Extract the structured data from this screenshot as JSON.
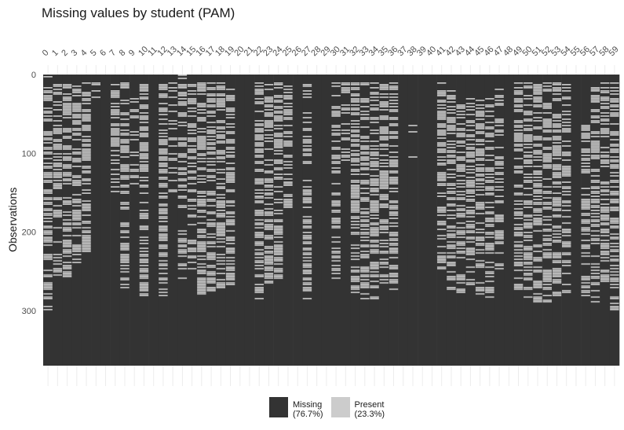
{
  "chart_data": {
    "type": "heatmap",
    "title": "Missing values by student (PAM)",
    "xlabel": "",
    "ylabel": "Observations",
    "x_ticks": [
      "0",
      "1",
      "2",
      "3",
      "4",
      "5",
      "6",
      "7",
      "8",
      "9",
      "10",
      "11",
      "12",
      "13",
      "14",
      "15",
      "16",
      "17",
      "18",
      "19",
      "20",
      "21",
      "22",
      "23",
      "24",
      "25",
      "26",
      "27",
      "28",
      "29",
      "30",
      "31",
      "32",
      "33",
      "34",
      "35",
      "36",
      "37",
      "38",
      "39",
      "40",
      "41",
      "42",
      "43",
      "44",
      "45",
      "46",
      "47",
      "48",
      "49",
      "50",
      "51",
      "52",
      "53",
      "54",
      "55",
      "56",
      "57",
      "58",
      "59"
    ],
    "y_ticks": [
      0,
      100,
      200,
      300
    ],
    "n_observations": 370,
    "legend": [
      {
        "label": "Missing",
        "pct": "(76.7%)",
        "color": "#333333"
      },
      {
        "label": "Present",
        "pct": "(23.3%)",
        "color": "#cccccc"
      }
    ],
    "present_extent_by_student": [
      [
        0,
        300,
        0.5
      ],
      [
        10,
        255,
        0.45
      ],
      [
        12,
        260,
        0.55
      ],
      [
        10,
        240,
        0.5
      ],
      [
        10,
        225,
        0.5
      ],
      [
        10,
        30,
        0.4
      ],
      [
        0,
        0,
        0
      ],
      [
        10,
        150,
        0.5
      ],
      [
        10,
        275,
        0.45
      ],
      [
        20,
        140,
        0.4
      ],
      [
        10,
        285,
        0.55
      ],
      [
        0,
        0,
        0
      ],
      [
        10,
        285,
        0.5
      ],
      [
        10,
        150,
        0.3
      ],
      [
        0,
        265,
        0.5
      ],
      [
        10,
        250,
        0.45
      ],
      [
        10,
        280,
        0.55
      ],
      [
        10,
        275,
        0.5
      ],
      [
        10,
        280,
        0.55
      ],
      [
        10,
        270,
        0.5
      ],
      [
        0,
        0,
        0
      ],
      [
        0,
        0,
        0
      ],
      [
        10,
        285,
        0.5
      ],
      [
        10,
        265,
        0.5
      ],
      [
        10,
        260,
        0.5
      ],
      [
        10,
        170,
        0.5
      ],
      [
        0,
        0,
        0
      ],
      [
        10,
        285,
        0.4
      ],
      [
        0,
        0,
        0
      ],
      [
        0,
        0,
        0
      ],
      [
        10,
        260,
        0.45
      ],
      [
        10,
        110,
        0.45
      ],
      [
        10,
        280,
        0.5
      ],
      [
        10,
        290,
        0.5
      ],
      [
        10,
        285,
        0.5
      ],
      [
        10,
        270,
        0.5
      ],
      [
        10,
        275,
        0.5
      ],
      [
        0,
        0,
        0
      ],
      [
        0,
        130,
        0.06
      ],
      [
        0,
        0,
        0
      ],
      [
        0,
        0,
        0
      ],
      [
        10,
        250,
        0.45
      ],
      [
        20,
        275,
        0.5
      ],
      [
        30,
        285,
        0.5
      ],
      [
        30,
        270,
        0.5
      ],
      [
        30,
        280,
        0.5
      ],
      [
        30,
        285,
        0.45
      ],
      [
        10,
        250,
        0.45
      ],
      [
        0,
        0,
        0
      ],
      [
        10,
        275,
        0.45
      ],
      [
        10,
        285,
        0.5
      ],
      [
        10,
        290,
        0.5
      ],
      [
        10,
        290,
        0.5
      ],
      [
        10,
        285,
        0.5
      ],
      [
        10,
        280,
        0.45
      ],
      [
        0,
        0,
        0
      ],
      [
        60,
        290,
        0.5
      ],
      [
        10,
        290,
        0.5
      ],
      [
        10,
        280,
        0.5
      ],
      [
        10,
        300,
        0.5
      ]
    ]
  }
}
